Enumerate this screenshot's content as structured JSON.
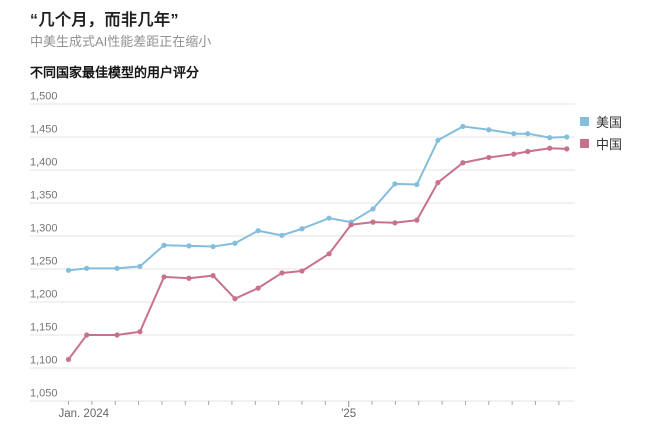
{
  "page": {
    "title": "“几个月，而非几年”",
    "subtitle": "中美生成式AI性能差距正在缩小"
  },
  "chart": {
    "header": "不同国家最佳模型的用户评分",
    "legend": [
      {
        "id": "us",
        "label": "美国",
        "color": "#85bedd"
      },
      {
        "id": "cn",
        "label": "中国",
        "color": "#c8718e"
      }
    ]
  },
  "colors": {
    "us_line": "#85bedd",
    "cn_line": "#c8718e",
    "gridline": "#e3e3e3",
    "tick": "#a8a8a8",
    "axis_label": "#757575"
  },
  "chart_data": {
    "type": "line",
    "title": "不同国家最佳模型的用户评分",
    "xlabel": "",
    "ylabel": "",
    "grid": "horizontal",
    "legend_position": "right",
    "y_axis": {
      "min": 1050,
      "max": 1500,
      "tick_step": 50,
      "tick_label_format": "comma"
    },
    "x_axis": {
      "unit": "months since Jan 2024",
      "tick_interval": 1,
      "tick_count": 22,
      "labels": [
        {
          "at": 0,
          "text": "Jan. 2024",
          "align": "start"
        },
        {
          "at": 12,
          "text": "'25",
          "align": "middle"
        }
      ]
    },
    "x": [
      0,
      0.78,
      2.08,
      3.06,
      4.09,
      5.16,
      6.19,
      7.13,
      8.12,
      9.14,
      10.0,
      11.16,
      12.1,
      13.04,
      13.98,
      14.92,
      15.82,
      16.89,
      18.0,
      19.07,
      19.67,
      20.61,
      21.34
    ],
    "series": [
      {
        "name": "美国",
        "color": "#85bedd",
        "values": [
          1248,
          1251,
          1251,
          1254,
          1286,
          1285,
          1284,
          1289,
          1308,
          1301,
          1311,
          1327,
          1321,
          1341,
          1379,
          1378,
          1445,
          1466,
          1461,
          1455,
          1455,
          1449,
          1450
        ]
      },
      {
        "name": "中国",
        "color": "#c8718e",
        "values": [
          1113,
          1150,
          1150,
          1155,
          1238,
          1236,
          1240,
          1205,
          1221,
          1244,
          1247,
          1273,
          1317,
          1321,
          1320,
          1324,
          1381,
          1411,
          1419,
          1424,
          1428,
          1433,
          1432
        ]
      }
    ]
  }
}
